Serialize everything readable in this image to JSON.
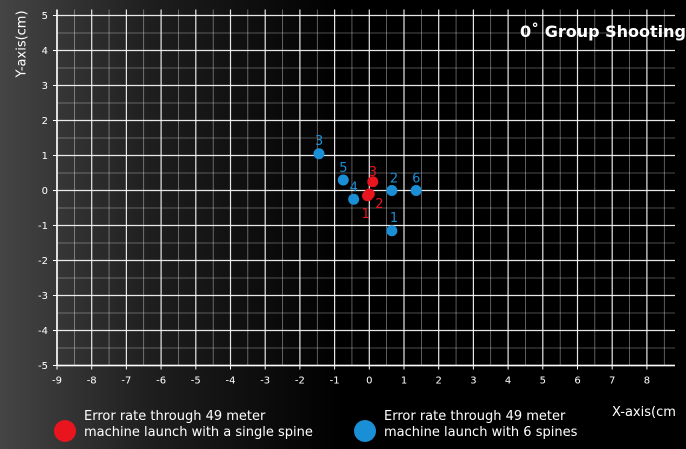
{
  "chart_data": {
    "type": "scatter",
    "title": "0˚ Group Shooting",
    "xlabel": "X-axis(cm",
    "ylabel": "Y-axis(cm)",
    "xlim": [
      -9,
      8
    ],
    "ylim": [
      -5,
      5
    ],
    "xticks": [
      "-9",
      "-8",
      "-7",
      "-6",
      "-5",
      "-4",
      "-3",
      "-2",
      "-1",
      "0",
      "1",
      "2",
      "3",
      "4",
      "5",
      "6",
      "7",
      "8"
    ],
    "yticks": [
      "5",
      "4",
      "3",
      "2",
      "1",
      "0",
      "-1",
      "-2",
      "-3",
      "-4",
      "-5"
    ],
    "grid": true,
    "series": [
      {
        "name": "Error rate through 49 meter machine launch with a single spine",
        "color": "#e8141e",
        "points": [
          {
            "label": "1",
            "x": -0.05,
            "y": -0.15
          },
          {
            "label": "2",
            "x": 0.0,
            "y": -0.1
          },
          {
            "label": "3",
            "x": 0.1,
            "y": 0.25
          }
        ]
      },
      {
        "name": "Error rate through 49 meter machine launch with 6 spines",
        "color": "#1a8fd6",
        "points": [
          {
            "label": "1",
            "x": 0.65,
            "y": -1.15
          },
          {
            "label": "2",
            "x": 0.65,
            "y": 0.0
          },
          {
            "label": "3",
            "x": -1.45,
            "y": 1.05
          },
          {
            "label": "4",
            "x": -0.45,
            "y": -0.25
          },
          {
            "label": "5",
            "x": -0.75,
            "y": 0.3
          },
          {
            "label": "6",
            "x": 1.35,
            "y": 0.0
          }
        ]
      }
    ],
    "legend": [
      {
        "line1": "Error rate through 49 meter",
        "line2": "machine launch with a single spine",
        "color": "#e8141e"
      },
      {
        "line1": "Error rate through 49 meter",
        "line2": "machine launch with 6 spines",
        "color": "#1a8fd6"
      }
    ]
  }
}
